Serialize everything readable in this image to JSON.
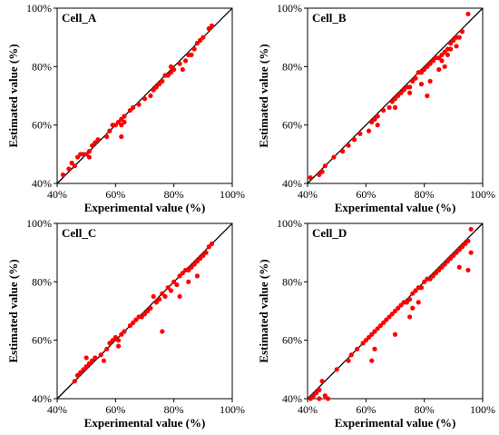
{
  "colors": {
    "point": "#ff0000",
    "axis": "#000000",
    "diagonal": "#000000"
  },
  "chart_data": [
    {
      "type": "scatter",
      "panel_label": "Cell_A",
      "xlabel": "Experimental value (%)",
      "ylabel": "Estimated value (%)",
      "xlim": [
        40,
        100
      ],
      "ylim": [
        40,
        100
      ],
      "xticks": [
        "40%",
        "60%",
        "80%",
        "100%"
      ],
      "yticks": [
        "40%",
        "60%",
        "80%",
        "100%"
      ],
      "reference_line": "y = x",
      "points": [
        [
          42,
          43
        ],
        [
          44,
          45
        ],
        [
          46,
          46
        ],
        [
          47,
          49
        ],
        [
          48,
          50
        ],
        [
          49,
          50
        ],
        [
          50,
          50
        ],
        [
          51,
          51
        ],
        [
          52,
          53
        ],
        [
          53,
          54
        ],
        [
          54,
          55
        ],
        [
          57,
          56
        ],
        [
          58,
          58
        ],
        [
          59,
          60
        ],
        [
          60,
          60
        ],
        [
          61,
          61
        ],
        [
          62,
          60
        ],
        [
          62,
          62
        ],
        [
          63,
          63
        ],
        [
          65,
          65
        ],
        [
          66,
          66
        ],
        [
          68,
          67
        ],
        [
          70,
          69
        ],
        [
          72,
          70
        ],
        [
          73,
          72
        ],
        [
          74,
          73
        ],
        [
          75,
          74
        ],
        [
          76,
          75
        ],
        [
          77,
          77
        ],
        [
          78,
          77
        ],
        [
          79,
          78
        ],
        [
          80,
          79
        ],
        [
          82,
          81
        ],
        [
          84,
          82
        ],
        [
          85,
          84
        ],
        [
          86,
          84
        ],
        [
          87,
          86
        ],
        [
          88,
          88
        ],
        [
          89,
          89
        ],
        [
          90,
          90
        ],
        [
          92,
          93
        ],
        [
          93,
          94
        ],
        [
          62,
          56
        ],
        [
          45,
          47
        ],
        [
          51,
          49
        ],
        [
          63,
          61
        ],
        [
          79,
          80
        ],
        [
          83,
          79
        ]
      ]
    },
    {
      "type": "scatter",
      "panel_label": "Cell_B",
      "xlabel": "Experimental value (%)",
      "ylabel": "Estimated value (%)",
      "xlim": [
        40,
        100
      ],
      "ylim": [
        40,
        100
      ],
      "xticks": [
        "40%",
        "60%",
        "80%",
        "100%"
      ],
      "yticks": [
        "40%",
        "60%",
        "80%",
        "100%"
      ],
      "reference_line": "y = x",
      "points": [
        [
          41,
          42
        ],
        [
          44,
          43
        ],
        [
          45,
          44
        ],
        [
          46,
          46
        ],
        [
          49,
          49
        ],
        [
          52,
          51
        ],
        [
          54,
          53
        ],
        [
          56,
          55
        ],
        [
          58,
          57
        ],
        [
          62,
          61
        ],
        [
          63,
          62
        ],
        [
          64,
          63
        ],
        [
          66,
          65
        ],
        [
          68,
          66
        ],
        [
          69,
          68
        ],
        [
          70,
          69
        ],
        [
          71,
          70
        ],
        [
          72,
          71
        ],
        [
          73,
          72
        ],
        [
          74,
          73
        ],
        [
          75,
          73
        ],
        [
          76,
          75
        ],
        [
          77,
          76
        ],
        [
          78,
          78
        ],
        [
          79,
          78
        ],
        [
          80,
          79
        ],
        [
          81,
          80
        ],
        [
          82,
          81
        ],
        [
          83,
          82
        ],
        [
          84,
          83
        ],
        [
          85,
          83
        ],
        [
          86,
          84
        ],
        [
          87,
          85
        ],
        [
          88,
          86
        ],
        [
          89,
          88
        ],
        [
          90,
          89
        ],
        [
          91,
          90
        ],
        [
          92,
          90
        ],
        [
          93,
          92
        ],
        [
          95,
          98
        ],
        [
          64,
          60
        ],
        [
          70,
          66
        ],
        [
          75,
          71
        ],
        [
          79,
          74
        ],
        [
          82,
          75
        ],
        [
          85,
          79
        ],
        [
          86,
          82
        ],
        [
          87,
          80
        ],
        [
          88,
          84
        ],
        [
          89,
          86
        ],
        [
          61,
          58
        ],
        [
          81,
          70
        ],
        [
          91,
          87
        ]
      ]
    },
    {
      "type": "scatter",
      "panel_label": "Cell_C",
      "xlabel": "Experimental value (%)",
      "ylabel": "Estimated value (%)",
      "xlim": [
        40,
        100
      ],
      "ylim": [
        40,
        100
      ],
      "xticks": [
        "40%",
        "60%",
        "80%",
        "100%"
      ],
      "yticks": [
        "40%",
        "60%",
        "80%",
        "100%"
      ],
      "reference_line": "y = x",
      "points": [
        [
          46,
          46
        ],
        [
          47,
          48
        ],
        [
          48,
          49
        ],
        [
          49,
          50
        ],
        [
          50,
          51
        ],
        [
          51,
          52
        ],
        [
          52,
          53
        ],
        [
          53,
          54
        ],
        [
          55,
          55
        ],
        [
          57,
          57
        ],
        [
          58,
          59
        ],
        [
          59,
          60
        ],
        [
          60,
          61
        ],
        [
          61,
          60
        ],
        [
          62,
          62
        ],
        [
          63,
          63
        ],
        [
          65,
          65
        ],
        [
          66,
          66
        ],
        [
          67,
          67
        ],
        [
          68,
          68
        ],
        [
          69,
          68
        ],
        [
          70,
          69
        ],
        [
          71,
          70
        ],
        [
          72,
          71
        ],
        [
          73,
          75
        ],
        [
          74,
          73
        ],
        [
          75,
          74
        ],
        [
          76,
          76
        ],
        [
          77,
          75
        ],
        [
          78,
          78
        ],
        [
          79,
          77
        ],
        [
          80,
          80
        ],
        [
          81,
          79
        ],
        [
          82,
          82
        ],
        [
          83,
          83
        ],
        [
          84,
          84
        ],
        [
          85,
          84
        ],
        [
          86,
          85
        ],
        [
          87,
          86
        ],
        [
          88,
          87
        ],
        [
          89,
          88
        ],
        [
          90,
          89
        ],
        [
          91,
          90
        ],
        [
          92,
          92
        ],
        [
          93,
          93
        ],
        [
          50,
          54
        ],
        [
          56,
          53
        ],
        [
          76,
          63
        ],
        [
          82,
          75
        ],
        [
          85,
          80
        ],
        [
          88,
          82
        ],
        [
          61,
          58
        ]
      ]
    },
    {
      "type": "scatter",
      "panel_label": "Cell_D",
      "xlabel": "Experimental value (%)",
      "ylabel": "Estimated value (%)",
      "xlim": [
        40,
        100
      ],
      "ylim": [
        40,
        100
      ],
      "xticks": [
        "40%",
        "60%",
        "80%",
        "100%"
      ],
      "yticks": [
        "40%",
        "60%",
        "80%",
        "100%"
      ],
      "reference_line": "y = x",
      "points": [
        [
          41,
          40
        ],
        [
          42,
          41
        ],
        [
          43,
          42
        ],
        [
          44,
          43
        ],
        [
          45,
          46
        ],
        [
          46,
          41
        ],
        [
          50,
          50
        ],
        [
          54,
          53
        ],
        [
          55,
          55
        ],
        [
          57,
          57
        ],
        [
          59,
          59
        ],
        [
          60,
          60
        ],
        [
          61,
          61
        ],
        [
          62,
          62
        ],
        [
          63,
          63
        ],
        [
          64,
          64
        ],
        [
          65,
          65
        ],
        [
          66,
          66
        ],
        [
          67,
          67
        ],
        [
          68,
          68
        ],
        [
          69,
          69
        ],
        [
          70,
          70
        ],
        [
          71,
          71
        ],
        [
          72,
          72
        ],
        [
          73,
          73
        ],
        [
          74,
          73
        ],
        [
          75,
          74
        ],
        [
          76,
          76
        ],
        [
          77,
          77
        ],
        [
          78,
          78
        ],
        [
          79,
          78
        ],
        [
          80,
          80
        ],
        [
          81,
          81
        ],
        [
          82,
          81
        ],
        [
          83,
          82
        ],
        [
          84,
          83
        ],
        [
          85,
          84
        ],
        [
          86,
          85
        ],
        [
          87,
          86
        ],
        [
          88,
          87
        ],
        [
          89,
          88
        ],
        [
          90,
          89
        ],
        [
          91,
          90
        ],
        [
          92,
          91
        ],
        [
          93,
          92
        ],
        [
          94,
          93
        ],
        [
          95,
          94
        ],
        [
          96,
          98
        ],
        [
          62,
          53
        ],
        [
          63,
          57
        ],
        [
          70,
          62
        ],
        [
          75,
          68
        ],
        [
          76,
          71
        ],
        [
          78,
          73
        ],
        [
          92,
          85
        ],
        [
          95,
          84
        ],
        [
          96,
          90
        ],
        [
          44,
          40
        ],
        [
          47,
          40
        ]
      ]
    }
  ]
}
